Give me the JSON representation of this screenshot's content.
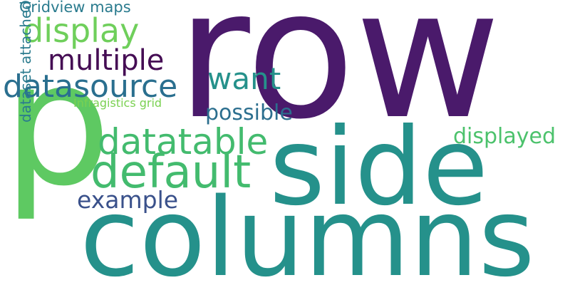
{
  "words": [
    {
      "text": "row",
      "color": "#4a1a6b"
    },
    {
      "text": "columns",
      "color": "#25918b"
    },
    {
      "text": "side",
      "color": "#25918b"
    },
    {
      "text": "p",
      "color": "#5ec962"
    },
    {
      "text": "default",
      "color": "#43bb6e"
    },
    {
      "text": "datatable",
      "color": "#43bb6e"
    },
    {
      "text": "datasource",
      "color": "#2a6f8f"
    },
    {
      "text": "multiple",
      "color": "#450d54"
    },
    {
      "text": "display",
      "color": "#6fcf5b"
    },
    {
      "text": "want",
      "color": "#25918b"
    },
    {
      "text": "possible",
      "color": "#2b6e8e"
    },
    {
      "text": "example",
      "color": "#3a518b"
    },
    {
      "text": "displayed",
      "color": "#4cc26c"
    },
    {
      "text": "Gridview maps",
      "color": "#2a7b8e"
    },
    {
      "text": "dataset attached",
      "color": "#2a7b8e"
    },
    {
      "text": "Infragistics grid",
      "color": "#7ad151"
    }
  ]
}
